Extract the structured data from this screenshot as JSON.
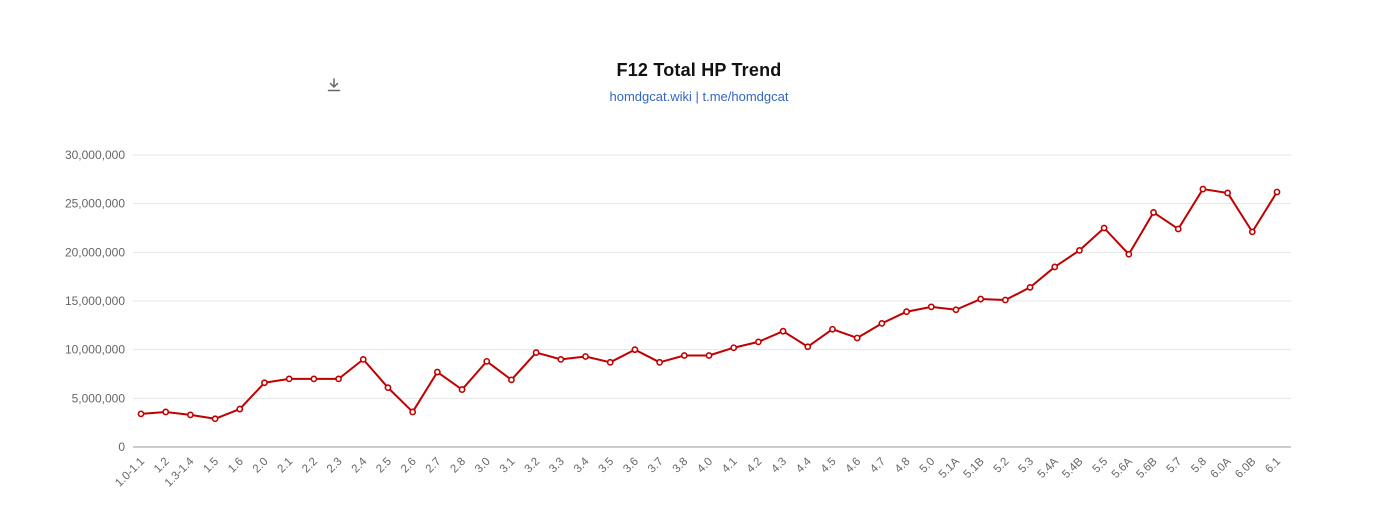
{
  "header": {
    "title": "F12 Total HP Trend",
    "subtitle": "homdgcat.wiki | t.me/homdgcat"
  },
  "toolbar": {
    "download_icon": "download-icon"
  },
  "chart_data": {
    "type": "line",
    "title": "F12 Total HP Trend",
    "subtitle": "homdgcat.wiki | t.me/homdgcat",
    "xlabel": "",
    "ylabel": "",
    "ylim": [
      0,
      30000000
    ],
    "ytick_interval": 5000000,
    "ytick_labels": [
      "0",
      "5,000,000",
      "10,000,000",
      "15,000,000",
      "20,000,000",
      "25,000,000",
      "30,000,000"
    ],
    "grid": true,
    "legend": false,
    "line_color": "#c00000",
    "marker": "circle",
    "categories": [
      "1.0-1.1",
      "1.2",
      "1.3-1.4",
      "1.5",
      "1.6",
      "2.0",
      "2.1",
      "2.2",
      "2.3",
      "2.4",
      "2.5",
      "2.6",
      "2.7",
      "2.8",
      "3.0",
      "3.1",
      "3.2",
      "3.3",
      "3.4",
      "3.5",
      "3.6",
      "3.7",
      "3.8",
      "4.0",
      "4.1",
      "4.2",
      "4.3",
      "4.4",
      "4.5",
      "4.6",
      "4.7",
      "4.8",
      "5.0",
      "5.1A",
      "5.1B",
      "5.2",
      "5.3",
      "5.4A",
      "5.4B",
      "5.5",
      "5.6A",
      "5.6B",
      "5.7",
      "5.8",
      "6.0A",
      "6.0B",
      "6.1"
    ],
    "values": [
      3400000,
      3600000,
      3300000,
      2900000,
      3900000,
      6600000,
      7000000,
      7000000,
      7000000,
      9000000,
      6100000,
      3600000,
      7700000,
      5900000,
      8800000,
      6900000,
      9700000,
      9000000,
      9300000,
      8700000,
      10000000,
      8700000,
      9400000,
      9400000,
      10200000,
      10800000,
      11900000,
      10300000,
      12100000,
      11200000,
      12700000,
      13900000,
      14400000,
      14100000,
      15200000,
      15100000,
      16400000,
      18500000,
      20200000,
      22500000,
      19800000,
      24100000,
      22400000,
      26500000,
      26100000,
      22100000,
      26200000
    ]
  }
}
